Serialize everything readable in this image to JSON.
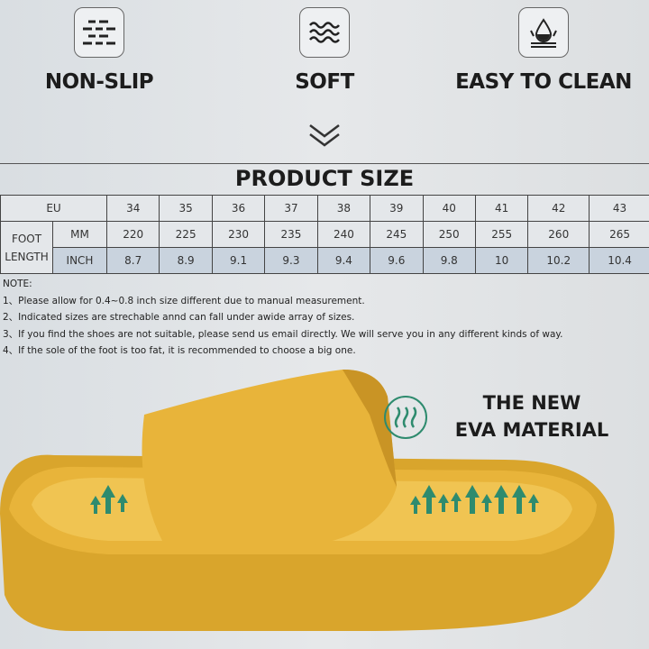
{
  "features": [
    {
      "label": "NON-SLIP",
      "icon": "non-slip-icon"
    },
    {
      "label": "SOFT",
      "icon": "waves-icon"
    },
    {
      "label": "EASY TO CLEAN",
      "icon": "water-drop-icon"
    }
  ],
  "size_section": {
    "title": "PRODUCT SIZE",
    "eu_label": "EU",
    "foot_length_label": "FOOT LENGTH",
    "mm_label": "MM",
    "inch_label": "INCH",
    "eu": [
      "34",
      "35",
      "36",
      "37",
      "38",
      "39",
      "40",
      "41",
      "42",
      "43"
    ],
    "mm": [
      "220",
      "225",
      "230",
      "235",
      "240",
      "245",
      "250",
      "255",
      "260",
      "265"
    ],
    "inch": [
      "8.7",
      "8.9",
      "9.1",
      "9.3",
      "9.4",
      "9.6",
      "9.8",
      "10",
      "10.2",
      "10.4"
    ]
  },
  "notes": {
    "heading": "NOTE:",
    "items": [
      "1、Please allow for 0.4~0.8 inch size different due to manual measurement.",
      "2、Indicated sizes are strechable annd can fall under awide array of sizes.",
      "3、If you find the shoes are not suitable, please send us email directly. We will serve you in any different kinds of way.",
      "4、If the sole of the foot is too fat, it is recommended to choose a big one."
    ]
  },
  "material": {
    "line1": "THE NEW",
    "line2": "EVA MATERIAL"
  },
  "colors": {
    "slipper": "#e8b43a",
    "arrows": "#2e8b6e"
  }
}
